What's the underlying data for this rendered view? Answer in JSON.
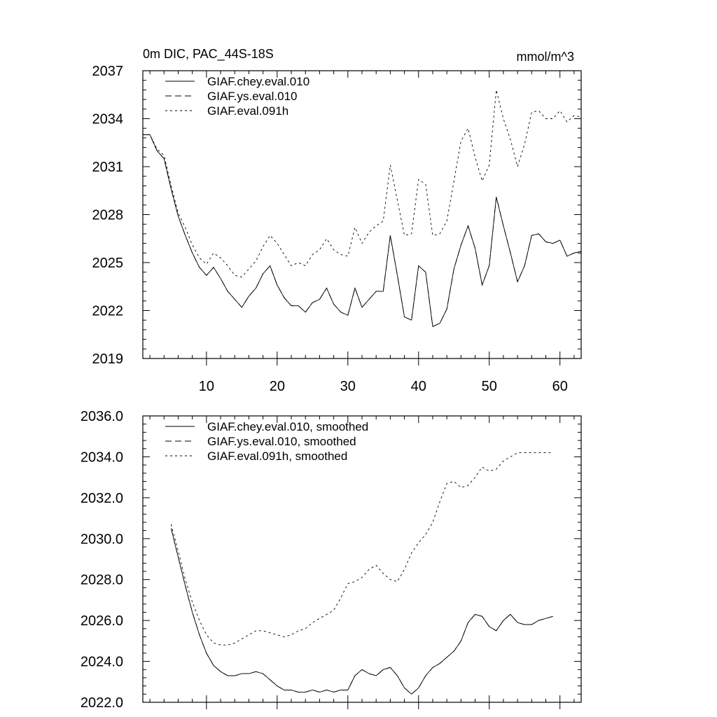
{
  "chart_data": [
    {
      "type": "line",
      "title": "0m DIC, PAC_44S-18S",
      "units": "mmol/m^3",
      "xlabel": "",
      "ylabel": "",
      "xlim": [
        1,
        63
      ],
      "ylim": [
        2019,
        2037
      ],
      "xticks": [
        10,
        20,
        30,
        40,
        50,
        60
      ],
      "yticks": [
        2019,
        2022,
        2025,
        2028,
        2031,
        2034,
        2037
      ],
      "grid": false,
      "legend_position": "top-left",
      "x": [
        1,
        2,
        3,
        4,
        5,
        6,
        7,
        8,
        9,
        10,
        11,
        12,
        13,
        14,
        15,
        16,
        17,
        18,
        19,
        20,
        21,
        22,
        23,
        24,
        25,
        26,
        27,
        28,
        29,
        30,
        31,
        32,
        33,
        34,
        35,
        36,
        37,
        38,
        39,
        40,
        41,
        42,
        43,
        44,
        45,
        46,
        47,
        48,
        49,
        50,
        51,
        52,
        53,
        54,
        55,
        56,
        57,
        58,
        59,
        60,
        61,
        62,
        63
      ],
      "series": [
        {
          "name": "GIAF.chey.eval.010",
          "dash": "solid",
          "values": [
            2033.0,
            2033.0,
            2032.0,
            2031.5,
            2029.6,
            2027.9,
            2026.7,
            2025.6,
            2024.7,
            2024.2,
            2024.7,
            2024.0,
            2023.2,
            2022.7,
            2022.2,
            2022.9,
            2023.4,
            2024.3,
            2024.8,
            2023.6,
            2022.8,
            2022.3,
            2022.3,
            2021.9,
            2022.5,
            2022.7,
            2023.4,
            2022.4,
            2021.9,
            2021.7,
            2023.4,
            2022.2,
            2022.7,
            2023.2,
            2023.2,
            2026.7,
            2024.2,
            2021.6,
            2021.4,
            2024.8,
            2024.4,
            2021.0,
            2021.2,
            2022.1,
            2024.6,
            2026.1,
            2027.3,
            2025.9,
            2023.6,
            2024.8,
            2029.1,
            2027.3,
            2025.6,
            2023.8,
            2024.8,
            2026.7,
            2026.8,
            2026.3,
            2026.2,
            2026.4,
            2025.4,
            2025.6,
            2025.7
          ]
        },
        {
          "name": "GIAF.ys.eval.010",
          "dash": "long",
          "values": [
            2033.0,
            2033.0,
            2032.0,
            2031.5,
            2029.6,
            2027.9,
            2026.7,
            2025.6,
            2024.7,
            2024.2,
            2024.7,
            2024.0,
            2023.2,
            2022.7,
            2022.2,
            2022.9,
            2023.4,
            2024.3,
            2024.8,
            2023.6,
            2022.8,
            2022.3,
            2022.3,
            2021.9,
            2022.5,
            2022.7,
            2023.4,
            2022.4,
            2021.9,
            2021.7,
            2023.4,
            2022.2,
            2022.7,
            2023.2,
            2023.2,
            2026.7,
            2024.2,
            2021.6,
            2021.4,
            2024.8,
            2024.4,
            2021.0,
            2021.2,
            2022.1,
            2024.6,
            2026.1,
            2027.3,
            2025.9,
            2023.6,
            2024.8,
            2029.1,
            2027.3,
            2025.6,
            2023.8,
            2024.8,
            2026.7,
            2026.8,
            2026.3,
            2026.2,
            2026.4,
            2025.4,
            2025.6,
            2025.7
          ]
        },
        {
          "name": "GIAF.eval.091h",
          "dash": "short",
          "values": [
            2033.0,
            2033.0,
            2032.1,
            2031.7,
            2029.8,
            2028.1,
            2027.2,
            2026.1,
            2025.3,
            2024.9,
            2025.6,
            2025.3,
            2024.8,
            2024.2,
            2024.1,
            2024.6,
            2025.1,
            2026.0,
            2026.7,
            2026.2,
            2025.5,
            2024.8,
            2025.0,
            2024.8,
            2025.5,
            2025.8,
            2026.5,
            2025.8,
            2025.5,
            2025.4,
            2027.2,
            2026.2,
            2026.9,
            2027.3,
            2027.6,
            2031.1,
            2028.9,
            2026.7,
            2026.8,
            2030.2,
            2029.9,
            2026.7,
            2026.8,
            2027.6,
            2030.1,
            2032.6,
            2033.4,
            2031.6,
            2030.1,
            2031.1,
            2035.8,
            2034.0,
            2032.7,
            2031.0,
            2032.4,
            2034.4,
            2034.5,
            2034.0,
            2034.0,
            2034.5,
            2033.8,
            2034.2,
            2034.1
          ]
        }
      ]
    },
    {
      "type": "line",
      "title": "",
      "xlabel": "",
      "ylabel": "",
      "xlim": [
        1,
        63
      ],
      "ylim": [
        2022.0,
        2036.0
      ],
      "xticks": [
        10,
        20,
        30,
        40,
        50,
        60
      ],
      "yticks": [
        "2022.0",
        "2024.0",
        "2026.0",
        "2028.0",
        "2030.0",
        "2032.0",
        "2034.0",
        "2036.0"
      ],
      "grid": false,
      "legend_position": "top-left",
      "x": [
        5,
        6,
        7,
        8,
        9,
        10,
        11,
        12,
        13,
        14,
        15,
        16,
        17,
        18,
        19,
        20,
        21,
        22,
        23,
        24,
        25,
        26,
        27,
        28,
        29,
        30,
        31,
        32,
        33,
        34,
        35,
        36,
        37,
        38,
        39,
        40,
        41,
        42,
        43,
        44,
        45,
        46,
        47,
        48,
        49,
        50,
        51,
        52,
        53,
        54,
        55,
        56,
        57,
        58,
        59
      ],
      "series": [
        {
          "name": "GIAF.chey.eval.010, smoothed",
          "dash": "solid",
          "values": [
            2030.5,
            2029.1,
            2027.7,
            2026.4,
            2025.3,
            2024.4,
            2023.8,
            2023.5,
            2023.3,
            2023.3,
            2023.4,
            2023.4,
            2023.5,
            2023.4,
            2023.1,
            2022.8,
            2022.6,
            2022.6,
            2022.5,
            2022.5,
            2022.6,
            2022.5,
            2022.6,
            2022.5,
            2022.6,
            2022.6,
            2023.3,
            2023.6,
            2023.4,
            2023.3,
            2023.6,
            2023.7,
            2023.3,
            2022.7,
            2022.4,
            2022.7,
            2023.3,
            2023.7,
            2023.9,
            2024.2,
            2024.5,
            2025.0,
            2025.9,
            2026.3,
            2026.2,
            2025.7,
            2025.5,
            2026.0,
            2026.3,
            2025.9,
            2025.8,
            2025.8,
            2026.0,
            2026.1,
            2026.2
          ]
        },
        {
          "name": "GIAF.ys.eval.010, smoothed",
          "dash": "long",
          "values": [
            2030.5,
            2029.1,
            2027.7,
            2026.4,
            2025.3,
            2024.4,
            2023.8,
            2023.5,
            2023.3,
            2023.3,
            2023.4,
            2023.4,
            2023.5,
            2023.4,
            2023.1,
            2022.8,
            2022.6,
            2022.6,
            2022.5,
            2022.5,
            2022.6,
            2022.5,
            2022.6,
            2022.5,
            2022.6,
            2022.6,
            2023.3,
            2023.6,
            2023.4,
            2023.3,
            2023.6,
            2023.7,
            2023.3,
            2022.7,
            2022.4,
            2022.7,
            2023.3,
            2023.7,
            2023.9,
            2024.2,
            2024.5,
            2025.0,
            2025.9,
            2026.3,
            2026.2,
            2025.7,
            2025.5,
            2026.0,
            2026.3,
            2025.9,
            2025.8,
            2025.8,
            2026.0,
            2026.1,
            2026.2
          ]
        },
        {
          "name": "GIAF.eval.091h, smoothed",
          "dash": "short",
          "values": [
            2030.7,
            2029.4,
            2028.0,
            2026.9,
            2026.0,
            2025.3,
            2024.9,
            2024.8,
            2024.8,
            2024.9,
            2025.1,
            2025.3,
            2025.5,
            2025.5,
            2025.4,
            2025.3,
            2025.2,
            2025.3,
            2025.5,
            2025.6,
            2025.9,
            2026.1,
            2026.3,
            2026.5,
            2027.1,
            2027.8,
            2027.9,
            2028.1,
            2028.5,
            2028.7,
            2028.3,
            2028.0,
            2027.9,
            2028.5,
            2029.3,
            2029.8,
            2030.2,
            2030.8,
            2031.8,
            2032.7,
            2032.8,
            2032.5,
            2032.6,
            2033.0,
            2033.5,
            2033.3,
            2033.4,
            2033.8,
            2034.0,
            2034.2,
            2034.2,
            2034.2,
            2034.2,
            2034.2,
            2034.2
          ]
        }
      ]
    }
  ]
}
